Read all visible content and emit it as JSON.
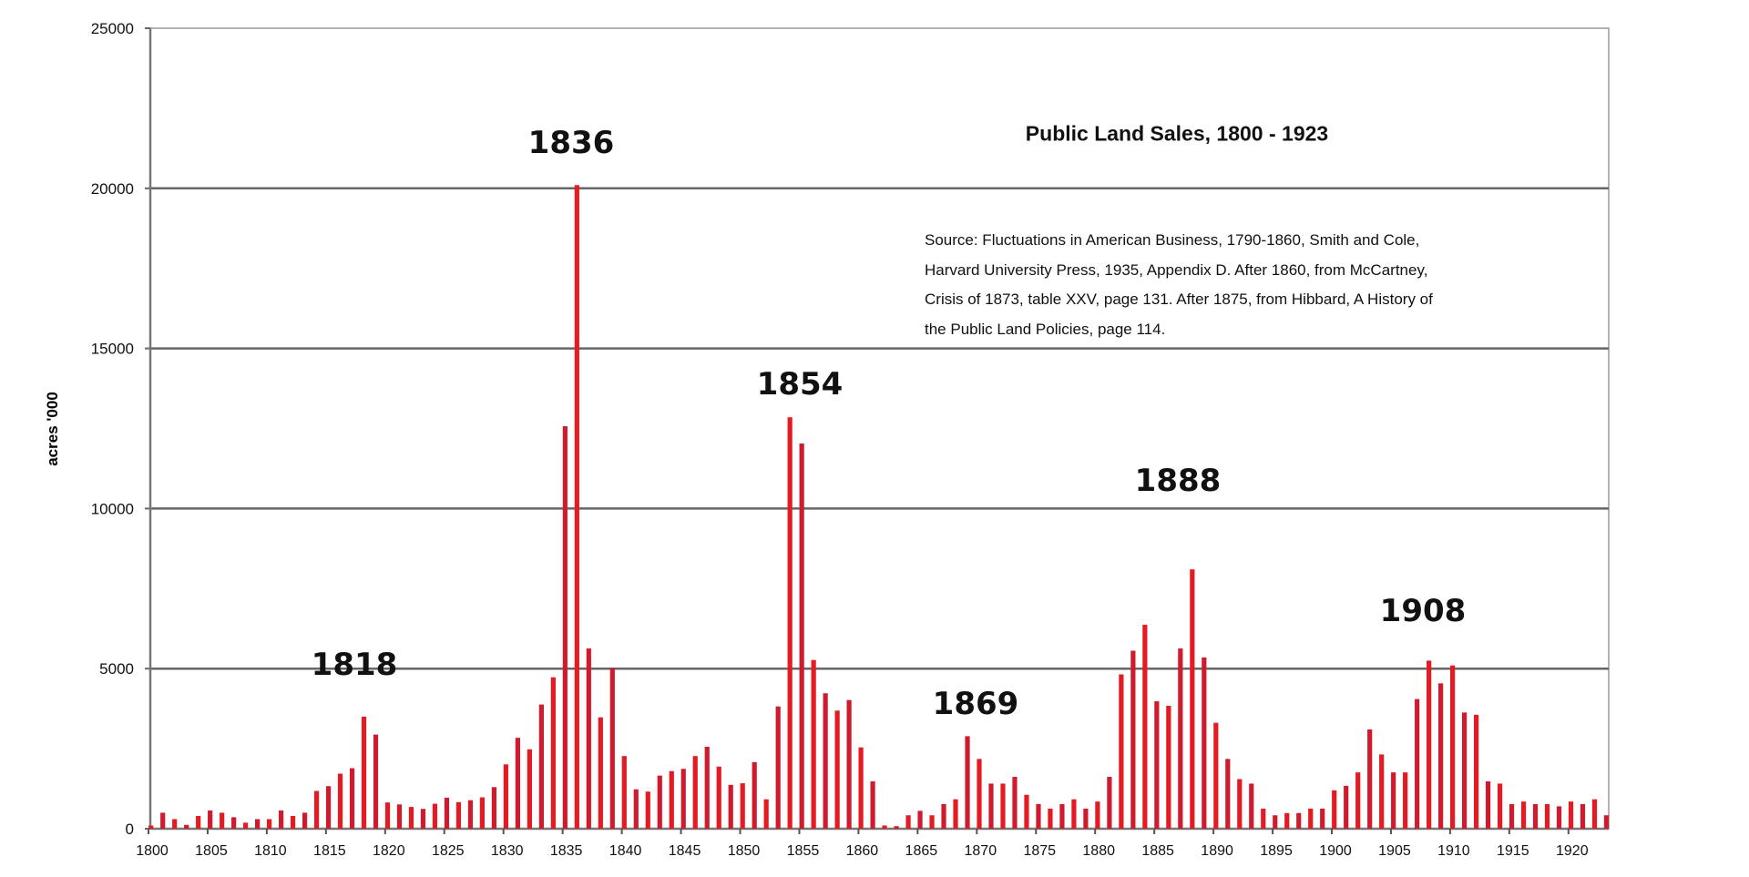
{
  "chart_data": {
    "type": "bar",
    "title": "Public Land Sales, 1800 - 1923",
    "ylabel": "acres '000",
    "xlabel": "",
    "ylim": [
      0,
      25000
    ],
    "yticks": [
      0,
      5000,
      10000,
      15000,
      20000,
      25000
    ],
    "xtick_labels": [
      "1800",
      "1805",
      "1810",
      "1815",
      "1820",
      "1825",
      "1830",
      "1835",
      "1840",
      "1845",
      "1850",
      "1855",
      "1860",
      "1865",
      "1870",
      "1875",
      "1880",
      "1885",
      "1890",
      "1895",
      "1900",
      "1905",
      "1910",
      "1915",
      "1920"
    ],
    "grid": true,
    "bar_color": "#e41b23",
    "source_lines": [
      "Source: Fluctuations in American Business, 1790-1860, Smith and Cole,",
      "Harvard University Press, 1935,  Appendix D.  After 1860, from McCartney,",
      "Crisis of 1873, table XXV, page 131.  After 1875, from Hibbard, A History of",
      "the Public Land Policies, page 114."
    ],
    "annotations": [
      "1818",
      "1836",
      "1854",
      "1869",
      "1888",
      "1908"
    ],
    "x_start": 1800,
    "values": [
      100,
      500,
      300,
      120,
      400,
      570,
      500,
      360,
      190,
      300,
      300,
      570,
      400,
      500,
      1180,
      1330,
      1720,
      1890,
      3500,
      2940,
      820,
      760,
      680,
      620,
      780,
      970,
      830,
      890,
      980,
      1300,
      2010,
      2840,
      2480,
      3880,
      4730,
      12570,
      20100,
      5630,
      3480,
      5020,
      2270,
      1230,
      1160,
      1660,
      1800,
      1870,
      2270,
      2560,
      1940,
      1370,
      1420,
      2080,
      920,
      3820,
      12850,
      12030,
      5270,
      4230,
      3690,
      4020,
      2540,
      1480,
      100,
      80,
      420,
      560,
      420,
      770,
      920,
      2890,
      2180,
      1410,
      1410,
      1620,
      1060,
      770,
      630,
      770,
      920,
      630,
      850,
      1620,
      4820,
      5560,
      6370,
      3980,
      3840,
      5630,
      8100,
      5350,
      3310,
      2180,
      1550,
      1410,
      630,
      420,
      490,
      490,
      630,
      630,
      1200,
      1340,
      1760,
      3100,
      2320,
      1760,
      1760,
      4050,
      5250,
      4540,
      5100,
      3630,
      3560,
      1480,
      1410,
      770,
      850,
      770,
      770,
      700,
      850,
      770,
      920,
      420
    ]
  }
}
